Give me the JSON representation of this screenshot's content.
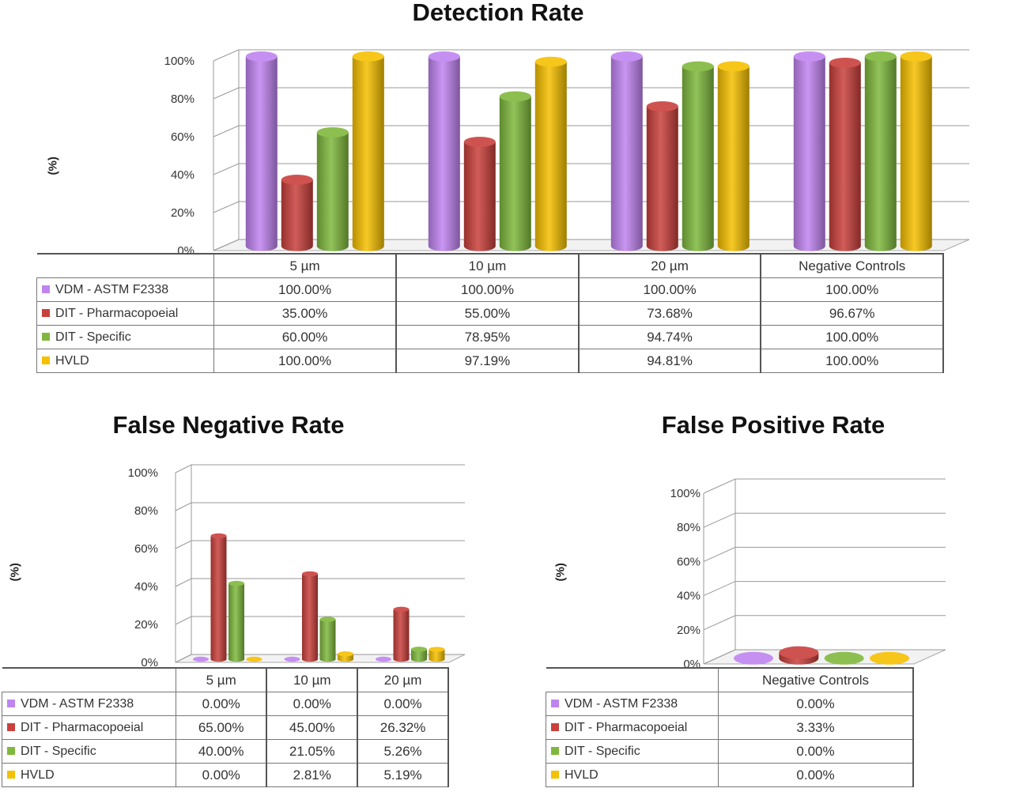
{
  "colors": {
    "VDM - ASTM F2338": "#c084f0",
    "DIT - Pharmacopoeial": "#c9403c",
    "DIT - Specific": "#7fb83d",
    "HVLD": "#f5c000"
  },
  "chart_data": [
    {
      "type": "bar",
      "title": "Detection Rate",
      "ylabel": "(%)",
      "ylim": [
        0,
        100
      ],
      "yticks": [
        "0%",
        "20%",
        "40%",
        "60%",
        "80%",
        "100%"
      ],
      "categories": [
        "5 µm",
        "10 µm",
        "20 µm",
        "Negative Controls"
      ],
      "series": [
        {
          "name": "VDM - ASTM F2338",
          "values": [
            100,
            100,
            100,
            100
          ],
          "labels": [
            "100.00%",
            "100.00%",
            "100.00%",
            "100.00%"
          ]
        },
        {
          "name": "DIT - Pharmacopoeial",
          "values": [
            35,
            55,
            73.68,
            96.67
          ],
          "labels": [
            "35.00%",
            "55.00%",
            "73.68%",
            "96.67%"
          ]
        },
        {
          "name": "DIT - Specific",
          "values": [
            60,
            78.95,
            94.74,
            100
          ],
          "labels": [
            "60.00%",
            "78.95%",
            "94.74%",
            "100.00%"
          ]
        },
        {
          "name": "HVLD",
          "values": [
            100,
            97.19,
            94.81,
            100
          ],
          "labels": [
            "100.00%",
            "97.19%",
            "94.81%",
            "100.00%"
          ]
        }
      ]
    },
    {
      "type": "bar",
      "title": "False Negative Rate",
      "ylabel": "(%)",
      "ylim": [
        0,
        100
      ],
      "yticks": [
        "0%",
        "20%",
        "40%",
        "60%",
        "80%",
        "100%"
      ],
      "categories": [
        "5 µm",
        "10 µm",
        "20 µm"
      ],
      "series": [
        {
          "name": "VDM - ASTM F2338",
          "values": [
            0,
            0,
            0
          ],
          "labels": [
            "0.00%",
            "0.00%",
            "0.00%"
          ]
        },
        {
          "name": "DIT - Pharmacopoeial",
          "values": [
            65,
            45,
            26.32
          ],
          "labels": [
            "65.00%",
            "45.00%",
            "26.32%"
          ]
        },
        {
          "name": "DIT - Specific",
          "values": [
            40,
            21.05,
            5.26
          ],
          "labels": [
            "40.00%",
            "21.05%",
            "5.26%"
          ]
        },
        {
          "name": "HVLD",
          "values": [
            0,
            2.81,
            5.19
          ],
          "labels": [
            "0.00%",
            "2.81%",
            "5.19%"
          ]
        }
      ]
    },
    {
      "type": "bar",
      "title": "False Positive Rate",
      "ylabel": "(%)",
      "ylim": [
        0,
        100
      ],
      "yticks": [
        "0%",
        "20%",
        "40%",
        "60%",
        "80%",
        "100%"
      ],
      "categories": [
        "Negative Controls"
      ],
      "series": [
        {
          "name": "VDM - ASTM F2338",
          "values": [
            0
          ],
          "labels": [
            "0.00%"
          ]
        },
        {
          "name": "DIT - Pharmacopoeial",
          "values": [
            3.33
          ],
          "labels": [
            "3.33%"
          ]
        },
        {
          "name": "DIT - Specific",
          "values": [
            0
          ],
          "labels": [
            "0.00%"
          ]
        },
        {
          "name": "HVLD",
          "values": [
            0
          ],
          "labels": [
            "0.00%"
          ]
        }
      ]
    }
  ]
}
